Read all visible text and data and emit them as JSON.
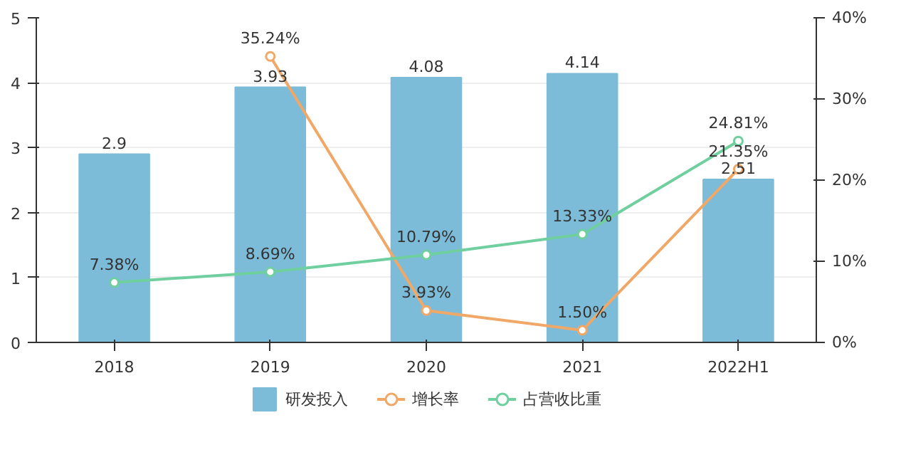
{
  "chart_data": {
    "type": "bar",
    "categories": [
      "2018",
      "2019",
      "2020",
      "2021",
      "2022H1"
    ],
    "series": [
      {
        "name": "研发投入",
        "color": "#7dbcd9",
        "values": [
          2.9,
          3.93,
          4.08,
          4.14,
          2.51
        ],
        "value_labels": [
          "2.9",
          "3.93",
          "4.08",
          "4.14",
          "2.51"
        ]
      },
      {
        "name": "增长率",
        "type": "line",
        "axis": "y2",
        "color": "#f0a868",
        "values": [
          null,
          35.24,
          3.93,
          1.5,
          21.35
        ],
        "value_labels": [
          null,
          "35.24%",
          "3.93%",
          "1.50%",
          "21.35%"
        ]
      },
      {
        "name": "占营收比重",
        "type": "line",
        "axis": "y2",
        "color": "#6fcf9f",
        "values": [
          7.38,
          8.69,
          10.79,
          13.33,
          24.81
        ],
        "value_labels": [
          "7.38%",
          "8.69%",
          "10.79%",
          "13.33%",
          "24.81%"
        ]
      }
    ],
    "ylim": [
      0,
      5
    ],
    "yticks": [
      0,
      1,
      2,
      3,
      4,
      5
    ],
    "y2lim": [
      0,
      40
    ],
    "y2ticks": [
      {
        "value": 0,
        "label": "0%"
      },
      {
        "value": 10,
        "label": "10%"
      },
      {
        "value": 20,
        "label": "20%"
      },
      {
        "value": 30,
        "label": "30%"
      },
      {
        "value": 40,
        "label": "40%"
      }
    ],
    "grid": "y",
    "legend": "bottom",
    "marker": "circle"
  }
}
